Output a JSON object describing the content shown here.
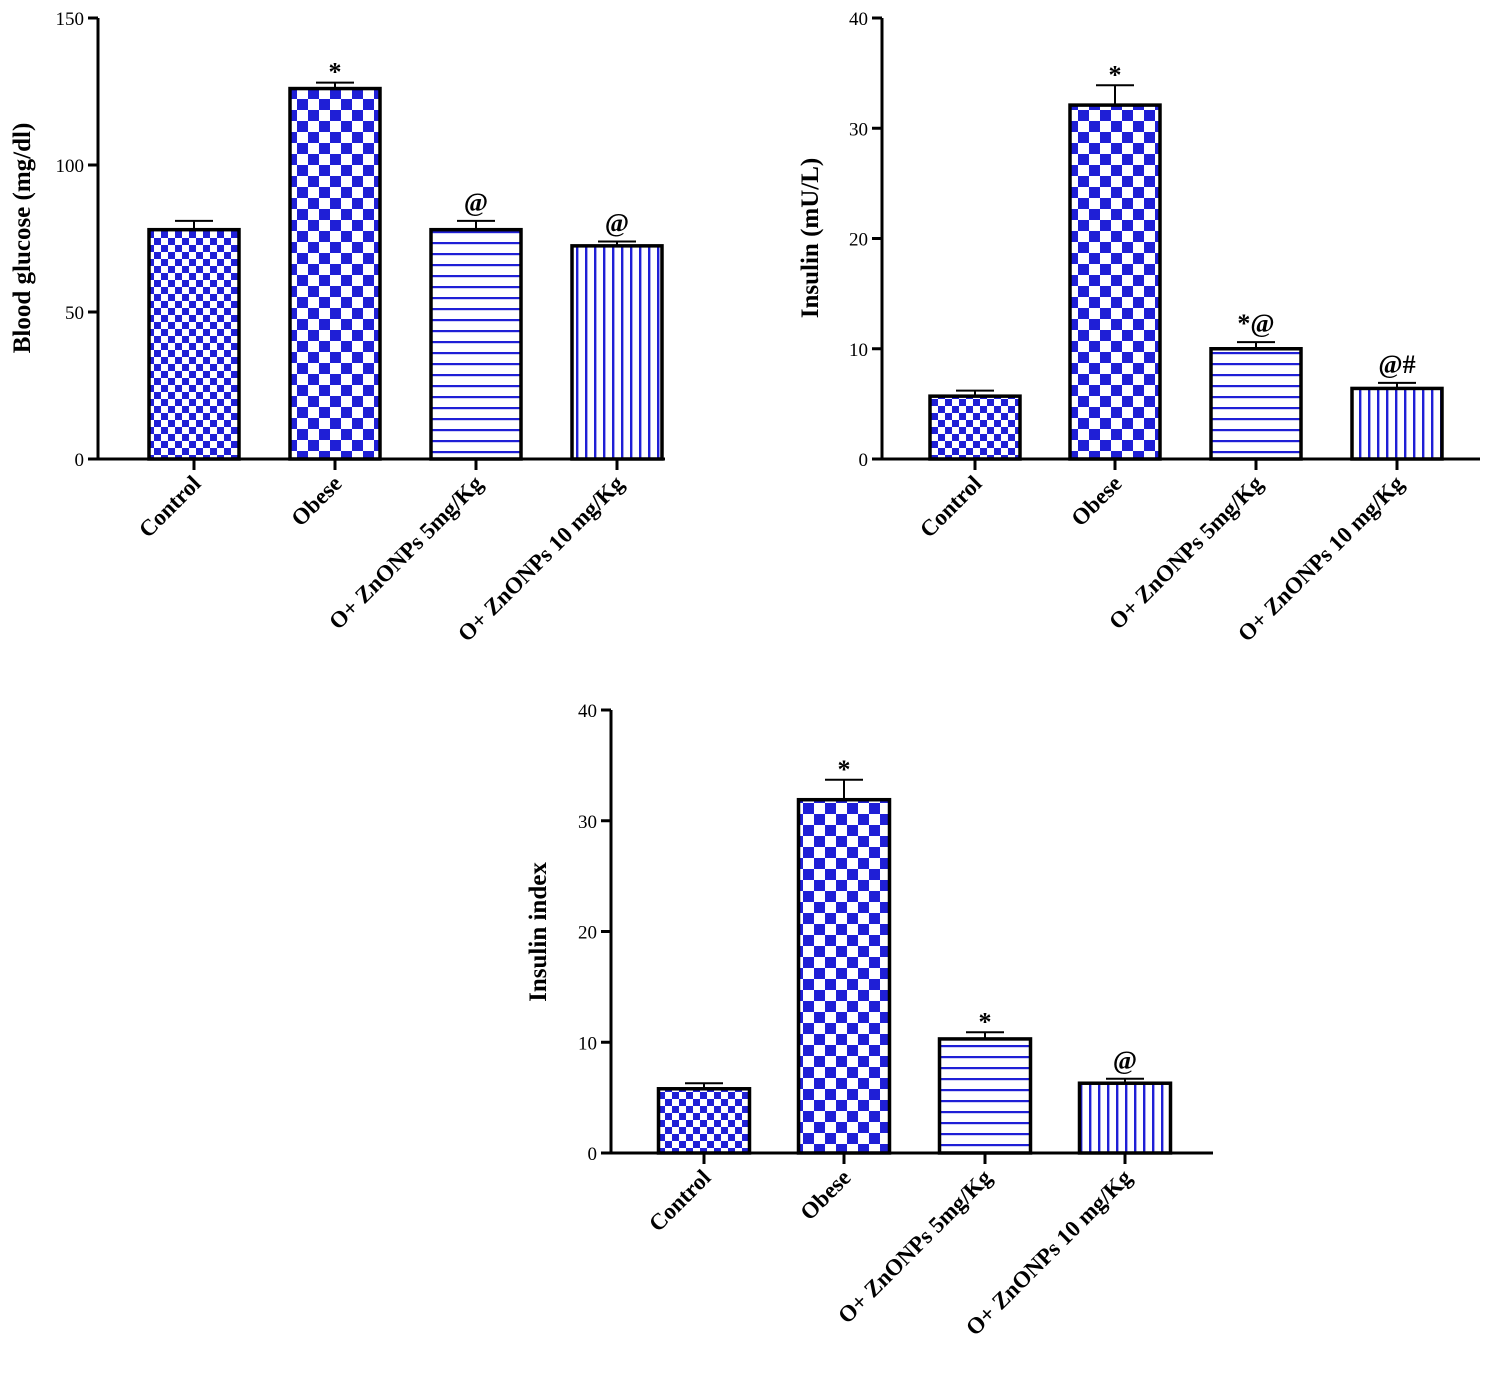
{
  "colors": {
    "pattern": "#1f1fd6",
    "background": "#ffffff",
    "axis": "#000000"
  },
  "chart_data": [
    {
      "type": "bar",
      "title": "",
      "xlabel": "",
      "ylabel": "Blood glucose (mg/dl)",
      "ylim": [
        0,
        150
      ],
      "yticks": [
        0,
        50,
        100,
        150
      ],
      "categories": [
        "Control",
        "Obese",
        "O+ ZnONPs 5mg/Kg",
        "O+ ZnONPs 10 mg/Kg"
      ],
      "values": [
        78,
        126,
        78,
        72.5
      ],
      "errors": [
        3,
        2,
        3,
        1.5
      ],
      "patterns": [
        "check-small",
        "check-large",
        "hstripe",
        "vstripe"
      ],
      "annotations": [
        "",
        "*",
        "@",
        "@"
      ]
    },
    {
      "type": "bar",
      "title": "",
      "xlabel": "",
      "ylabel": "Insulin (mU/L)",
      "ylim": [
        0,
        40
      ],
      "yticks": [
        0,
        10,
        20,
        30,
        40
      ],
      "categories": [
        "Control",
        "Obese",
        "O+ ZnONPs 5mg/Kg",
        "O+ ZnONPs 10 mg/Kg"
      ],
      "values": [
        5.7,
        32.1,
        10.0,
        6.4
      ],
      "errors": [
        0.5,
        1.8,
        0.6,
        0.5
      ],
      "patterns": [
        "check-small",
        "check-large",
        "hstripe",
        "vstripe"
      ],
      "annotations": [
        "",
        "*",
        "*@",
        "@#"
      ]
    },
    {
      "type": "bar",
      "title": "",
      "xlabel": "",
      "ylabel": "Insulin index",
      "ylim": [
        0,
        40
      ],
      "yticks": [
        0,
        10,
        20,
        30,
        40
      ],
      "categories": [
        "Control",
        "Obese",
        "O+ ZnONPs 5mg/Kg",
        "O+ ZnONPs 10 mg/Kg"
      ],
      "values": [
        5.8,
        31.9,
        10.3,
        6.3
      ],
      "errors": [
        0.5,
        1.8,
        0.6,
        0.4
      ],
      "patterns": [
        "check-small",
        "check-large",
        "hstripe",
        "vstripe"
      ],
      "annotations": [
        "",
        "*",
        "*",
        "@"
      ]
    }
  ]
}
